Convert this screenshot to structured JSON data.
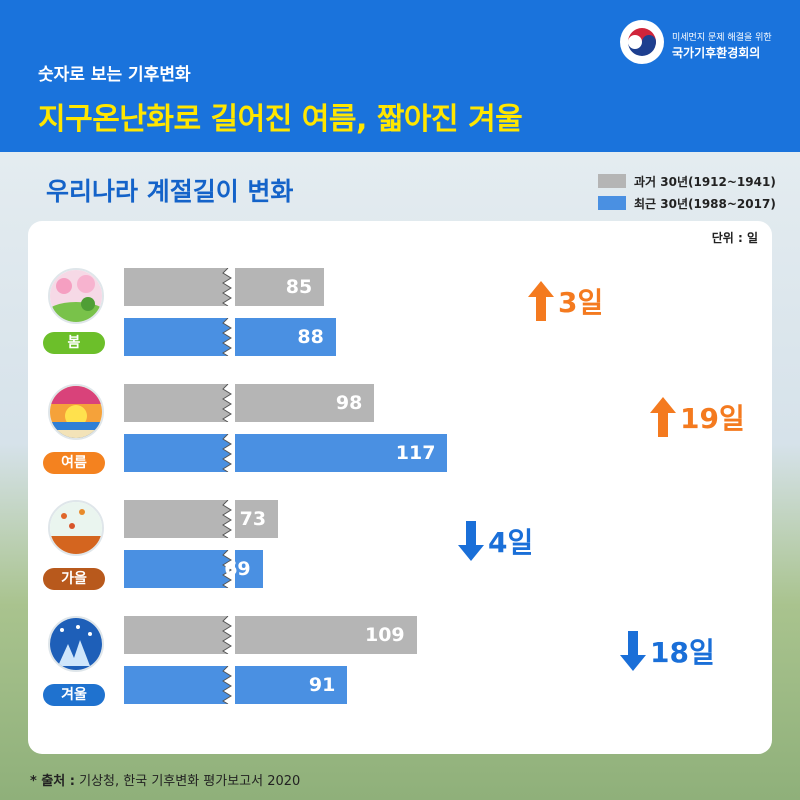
{
  "header": {
    "subtitle": "숫자로 보는 기후변화",
    "title": "지구온난화로 길어진 여름, 짧아진 겨울",
    "org_line1": "미세먼지 문제 해결을 위한",
    "org_line2": "국가기후환경회의",
    "bg_color": "#1a73dc",
    "title_color": "#ffe600"
  },
  "chart_data": {
    "type": "bar",
    "title": "우리나라 계절길이 변화",
    "unit_label": "단위 : 일",
    "categories": [
      "봄",
      "여름",
      "가을",
      "겨울"
    ],
    "series": [
      {
        "name": "과거 30년(1912~1941)",
        "color": "#b5b5b5",
        "values": [
          85,
          98,
          73,
          109
        ]
      },
      {
        "name": "최근 30년(1988~2017)",
        "color": "#4a90e2",
        "values": [
          88,
          117,
          69,
          91
        ]
      }
    ],
    "axis_break": true,
    "legend_position": "top-right",
    "changes": [
      {
        "label": "3일",
        "direction": "up",
        "color": "#f47a1f"
      },
      {
        "label": "19일",
        "direction": "up",
        "color": "#f47a1f"
      },
      {
        "label": "4일",
        "direction": "down",
        "color": "#1a6fd8"
      },
      {
        "label": "18일",
        "direction": "down",
        "color": "#1a6fd8"
      }
    ],
    "season_colors": [
      "#6cbf2a",
      "#f4821f",
      "#b8591c",
      "#1f72cf"
    ]
  },
  "source": {
    "label": "* 출처 :",
    "text": " 기상청, 한국 기후변화 평가보고서 2020"
  }
}
